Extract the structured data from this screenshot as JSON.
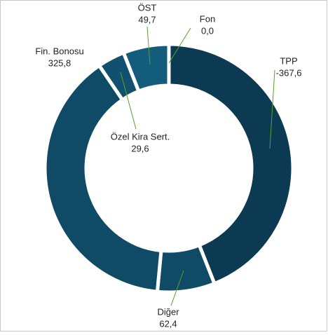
{
  "chart_data": {
    "type": "pie",
    "donut": true,
    "categories": [
      "TPP",
      "Diğer",
      "Fin. Bonosu",
      "Özel Kira Sert.",
      "ÖST",
      "Fon"
    ],
    "values": [
      -367.6,
      62.4,
      325.8,
      29.6,
      49.7,
      0.0
    ],
    "value_labels": [
      "-367,6",
      "62,4",
      "325,8",
      "29,6",
      "49,7",
      "0,0"
    ],
    "colors": [
      "#0b3a52",
      "#0f4a66",
      "#0f4a66",
      "#11506e",
      "#145c7c",
      "#145c7c"
    ]
  }
}
